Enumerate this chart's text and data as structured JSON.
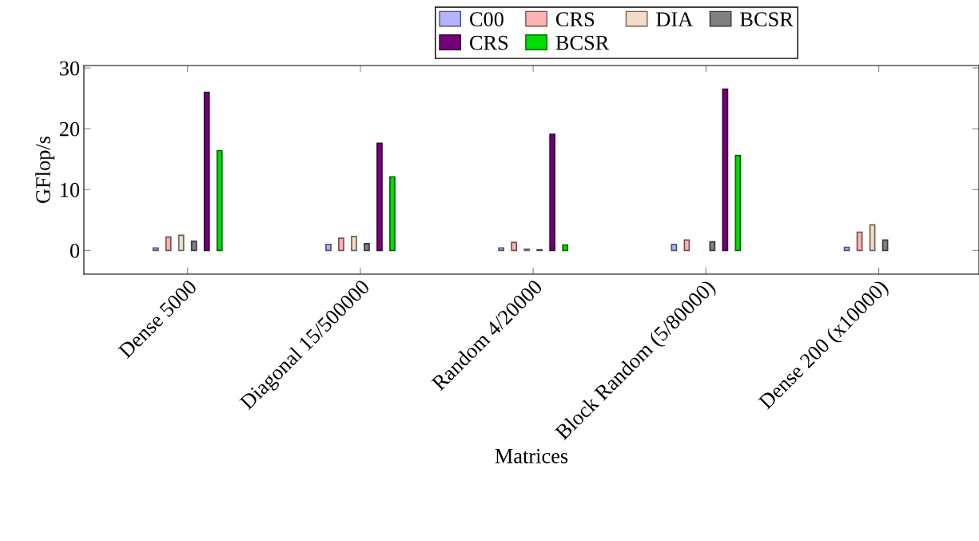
{
  "chart_data": {
    "type": "bar",
    "xlabel": "Matrices",
    "ylabel": "GFlop/s",
    "categories": [
      "Dense 5000",
      "Diagonal 15/500000",
      "Random 4/20000",
      "Block Random (5/80000)",
      "Dense 200 (x10000)"
    ],
    "series": [
      {
        "name": "C00",
        "color": "#b3b3ff",
        "values": [
          0.4,
          1.0,
          0.4,
          1.0,
          0.5
        ]
      },
      {
        "name": "CRS",
        "color": "#ffb3b3",
        "values": [
          2.2,
          2.0,
          1.3,
          1.7,
          3.0
        ]
      },
      {
        "name": "DIA",
        "color": "#f2dcc6",
        "values": [
          2.5,
          2.3,
          0.2,
          null,
          4.2
        ]
      },
      {
        "name": "BCSR",
        "color": "#808080",
        "values": [
          1.5,
          1.1,
          0.1,
          1.4,
          1.7
        ]
      },
      {
        "name": "CRS",
        "color": "#760078",
        "values": [
          26.0,
          17.6,
          19.1,
          26.5,
          null
        ]
      },
      {
        "name": "BCSR",
        "color": "#00dd00",
        "values": [
          16.4,
          12.1,
          0.9,
          15.6,
          null
        ]
      }
    ],
    "ylim": [
      -3.9,
      30.4
    ],
    "yticks": [
      0,
      10,
      20,
      30
    ],
    "grid": false,
    "legend": "top"
  }
}
